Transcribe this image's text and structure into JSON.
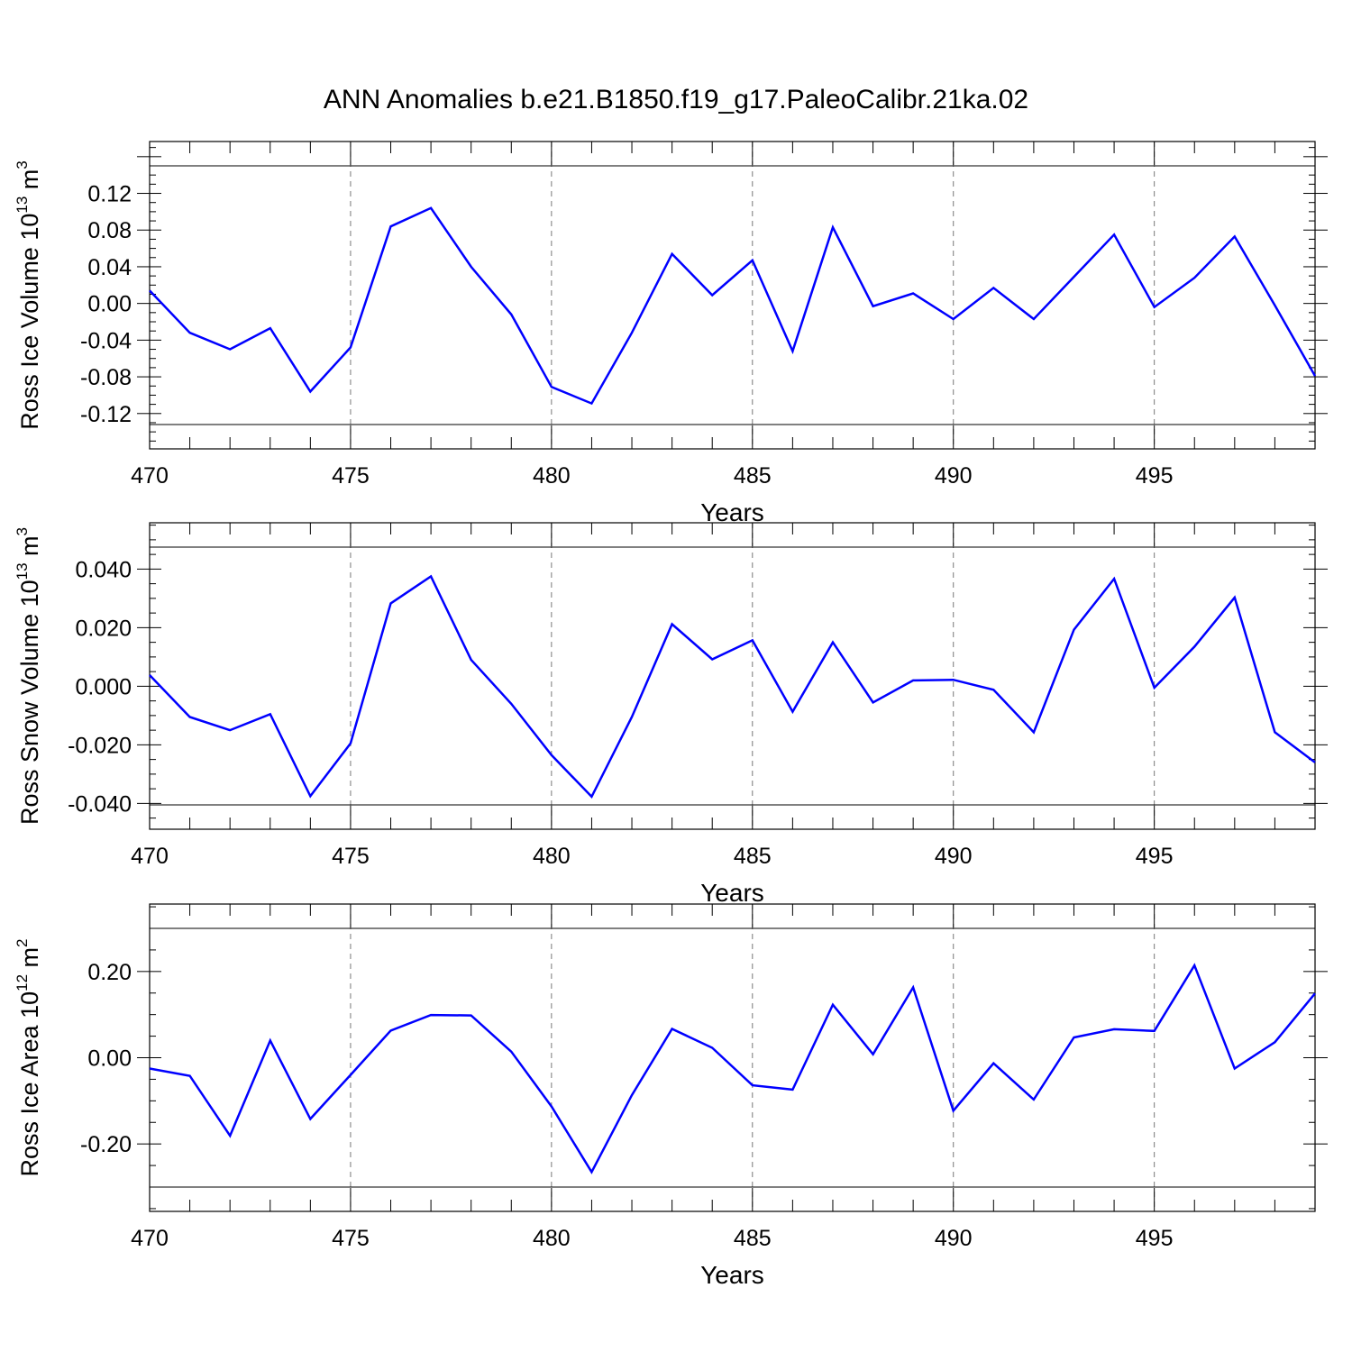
{
  "title": "ANN Anomalies b.e21.B1850.f19_g17.PaleoCalibr.21ka.02",
  "chart_data": [
    {
      "type": "line",
      "xlabel": "Years",
      "ylabel": {
        "text": "Ross Ice Volume 10",
        "sup": "13",
        "unit": " m",
        "unit_sup": "3"
      },
      "xlim": [
        470,
        499
      ],
      "ylim": [
        -0.132,
        0.15
      ],
      "x_ticks": [
        470,
        475,
        480,
        485,
        490,
        495
      ],
      "y_ticks": [
        -0.12,
        -0.08,
        -0.04,
        0.0,
        0.04,
        0.08,
        0.12
      ],
      "y_tick_labels": [
        "-0.12",
        "-0.08",
        "-0.04",
        "0.00",
        "0.04",
        "0.08",
        "0.12"
      ],
      "x_grid": [
        475,
        480,
        485,
        490,
        495
      ],
      "line_color": "#0000ff",
      "x": [
        470,
        471,
        472,
        473,
        474,
        475,
        476,
        477,
        478,
        479,
        480,
        481,
        482,
        483,
        484,
        485,
        486,
        487,
        488,
        489,
        490,
        491,
        492,
        493,
        494,
        495,
        496,
        497,
        498,
        499
      ],
      "values": [
        0.014,
        -0.032,
        -0.05,
        -0.027,
        -0.096,
        -0.048,
        0.084,
        0.104,
        0.04,
        -0.012,
        -0.091,
        -0.109,
        -0.032,
        0.054,
        0.009,
        0.047,
        -0.052,
        0.083,
        -0.003,
        0.011,
        -0.017,
        0.017,
        -0.017,
        0.029,
        0.075,
        -0.004,
        0.028,
        0.073,
        -0.002,
        -0.079
      ]
    },
    {
      "type": "line",
      "xlabel": "Years",
      "ylabel": {
        "text": "Ross Snow Volume 10",
        "sup": "13",
        "unit": " m",
        "unit_sup": "3"
      },
      "xlim": [
        470,
        499
      ],
      "ylim": [
        -0.0405,
        0.0475
      ],
      "x_ticks": [
        470,
        475,
        480,
        485,
        490,
        495
      ],
      "y_ticks": [
        -0.04,
        -0.02,
        0.0,
        0.02,
        0.04
      ],
      "y_tick_labels": [
        "-0.040",
        "-0.020",
        "0.000",
        "0.020",
        "0.040"
      ],
      "x_grid": [
        475,
        480,
        485,
        490,
        495
      ],
      "line_color": "#0000ff",
      "x": [
        470,
        471,
        472,
        473,
        474,
        475,
        476,
        477,
        478,
        479,
        480,
        481,
        482,
        483,
        484,
        485,
        486,
        487,
        488,
        489,
        490,
        491,
        492,
        493,
        494,
        495,
        496,
        497,
        498,
        499
      ],
      "values": [
        0.0038,
        -0.0105,
        -0.015,
        -0.0095,
        -0.0375,
        -0.0195,
        0.0283,
        0.0375,
        0.009,
        -0.006,
        -0.0235,
        -0.0377,
        -0.0105,
        0.0212,
        0.0092,
        0.0157,
        -0.0087,
        0.015,
        -0.0055,
        0.002,
        0.0022,
        -0.0012,
        -0.0157,
        0.0193,
        0.0367,
        -0.0005,
        0.0135,
        0.0303,
        -0.0157,
        -0.026
      ]
    },
    {
      "type": "line",
      "xlabel": "Years",
      "ylabel": {
        "text": "Ross Ice Area 10",
        "sup": "12",
        "unit": " m",
        "unit_sup": "2"
      },
      "xlim": [
        470,
        499
      ],
      "ylim": [
        -0.3,
        0.3
      ],
      "x_ticks": [
        470,
        475,
        480,
        485,
        490,
        495
      ],
      "y_ticks": [
        -0.2,
        0.0,
        0.2
      ],
      "y_tick_labels": [
        "-0.20",
        "0.00",
        "0.20"
      ],
      "x_grid": [
        475,
        480,
        485,
        490,
        495
      ],
      "line_color": "#0000ff",
      "x": [
        470,
        471,
        472,
        473,
        474,
        475,
        476,
        477,
        478,
        479,
        480,
        481,
        482,
        483,
        484,
        485,
        486,
        487,
        488,
        489,
        490,
        491,
        492,
        493,
        494,
        495,
        496,
        497,
        498,
        499
      ],
      "values": [
        -0.025,
        -0.042,
        -0.181,
        0.04,
        -0.142,
        -0.04,
        0.063,
        0.099,
        0.098,
        0.014,
        -0.113,
        -0.265,
        -0.087,
        0.067,
        0.023,
        -0.064,
        -0.074,
        0.123,
        0.008,
        0.163,
        -0.123,
        -0.013,
        -0.097,
        0.047,
        0.066,
        0.062,
        0.214,
        -0.025,
        0.036,
        0.149
      ]
    }
  ]
}
